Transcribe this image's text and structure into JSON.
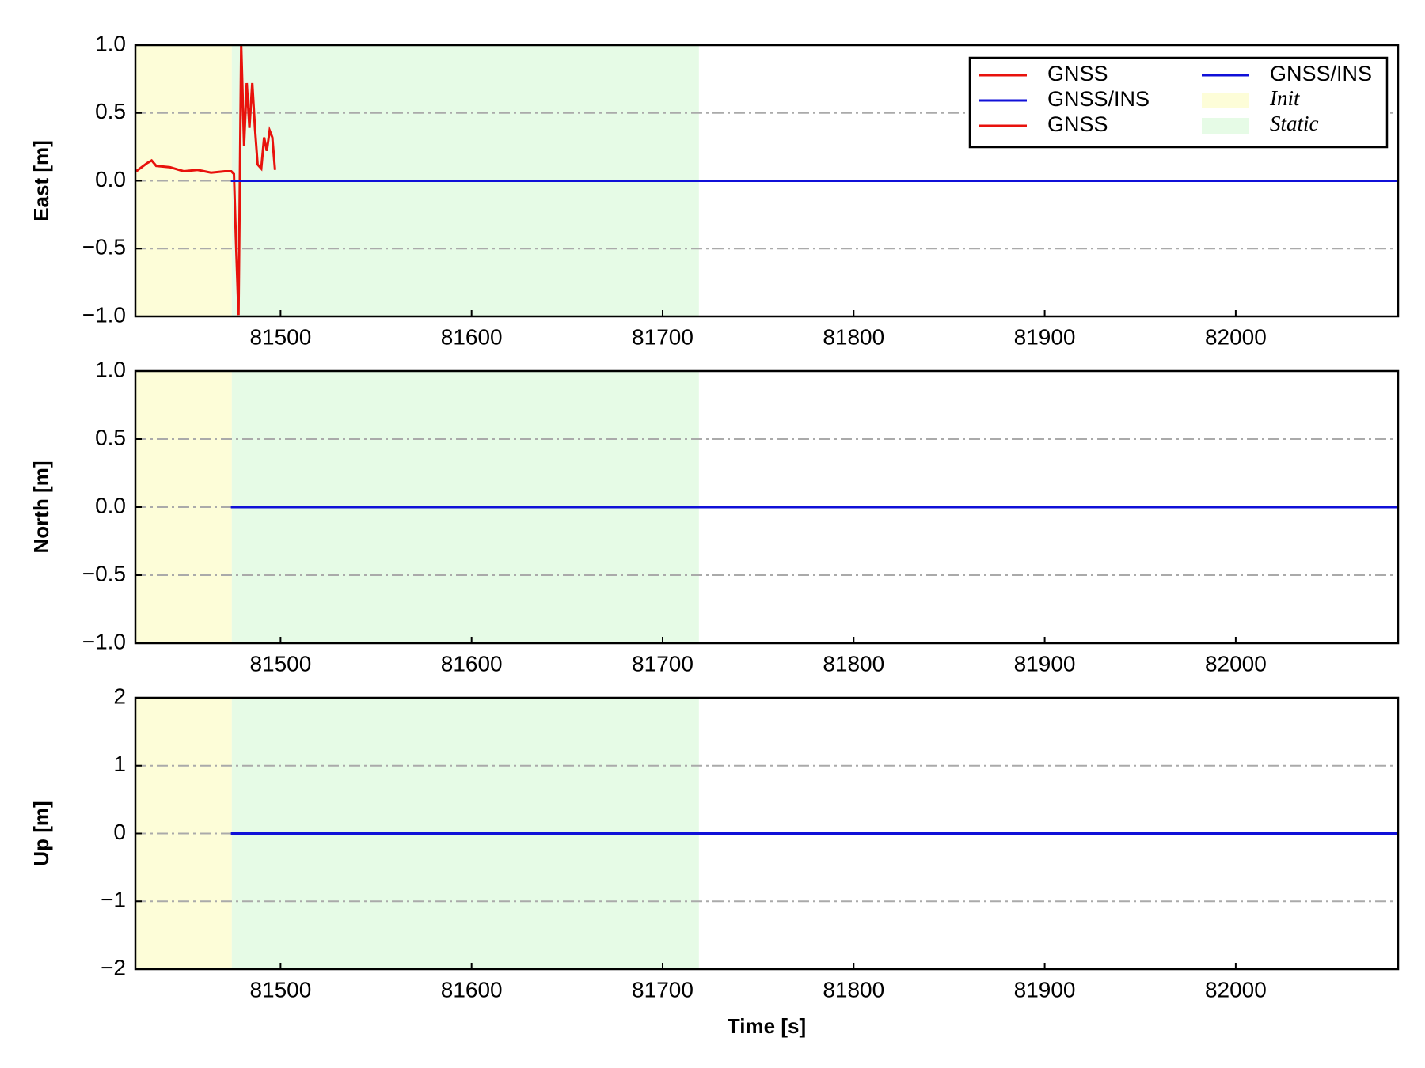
{
  "chart_data": [
    {
      "type": "line",
      "ylabel": "East [m]",
      "xlim": [
        81424,
        82085
      ],
      "xticks": [
        81500,
        81600,
        81700,
        81800,
        81900,
        82000
      ],
      "ylim": [
        -1,
        1
      ],
      "yticks": [
        {
          "value": -1,
          "label": "−1.0"
        },
        {
          "value": -0.5,
          "label": "−0.5"
        },
        {
          "value": 0,
          "label": "0.0"
        },
        {
          "value": 0.5,
          "label": "0.5"
        },
        {
          "value": 1,
          "label": "1.0"
        }
      ],
      "grid": true,
      "spans": [
        {
          "start": 81424,
          "end": 81474.5,
          "color": "#fdfdd8"
        },
        {
          "start": 81474.5,
          "end": 81719,
          "color": "#e6fbe6"
        }
      ],
      "series": [
        {
          "color": "#e8120c",
          "x": [
            81424.4,
            81430.1,
            81432.5,
            81434.9,
            81442.1,
            81449.3,
            81456.5,
            81463.6,
            81470.8,
            81474.2,
            81475.6,
            81476.6,
            81478.0,
            81479.4,
            81480.9,
            81482.3,
            81483.7,
            81485.2,
            81486.6,
            81488.0,
            81489.9,
            81491.4,
            81492.8,
            81494.3,
            81495.7,
            81497.1
          ],
          "values": [
            0.07,
            0.13,
            0.15,
            0.11,
            0.1,
            0.07,
            0.08,
            0.06,
            0.07,
            0.07,
            0.05,
            -0.42,
            -0.99,
            1.0,
            0.26,
            0.72,
            0.39,
            0.72,
            0.39,
            0.12,
            0.09,
            0.32,
            0.22,
            0.37,
            0.32,
            0.08
          ]
        },
        {
          "color": "#1010d8",
          "x": [
            81474,
            82085
          ],
          "values": [
            0,
            0
          ]
        }
      ],
      "legend": {
        "position": "upper right",
        "columns": 2,
        "items": [
          {
            "label": "GNSS",
            "color": "#e8120c",
            "kind": "line"
          },
          {
            "label": "GNSS/INS",
            "color": "#1010d8",
            "kind": "line"
          },
          {
            "label": "GNSS",
            "color": "#e8120c",
            "kind": "line"
          },
          {
            "label": "GNSS/INS",
            "color": "#1010d8",
            "kind": "line"
          },
          {
            "label": "Init",
            "color": "#fdfdd8",
            "kind": "patch"
          },
          {
            "label": "Static",
            "color": "#e6fbe6",
            "kind": "patch"
          }
        ]
      }
    },
    {
      "type": "line",
      "ylabel": "North [m]",
      "xlim": [
        81424,
        82085
      ],
      "xticks": [
        81500,
        81600,
        81700,
        81800,
        81900,
        82000
      ],
      "ylim": [
        -1,
        1
      ],
      "yticks": [
        {
          "value": -1,
          "label": "−1.0"
        },
        {
          "value": -0.5,
          "label": "−0.5"
        },
        {
          "value": 0,
          "label": "0.0"
        },
        {
          "value": 0.5,
          "label": "0.5"
        },
        {
          "value": 1,
          "label": "1.0"
        }
      ],
      "grid": true,
      "spans": [
        {
          "start": 81424,
          "end": 81474.5,
          "color": "#fdfdd8"
        },
        {
          "start": 81474.5,
          "end": 81719,
          "color": "#e6fbe6"
        }
      ],
      "series": [
        {
          "color": "#1010d8",
          "x": [
            81474,
            82085
          ],
          "values": [
            0,
            0
          ]
        }
      ]
    },
    {
      "type": "line",
      "ylabel": "Up [m]",
      "xlabel": "Time [s]",
      "xlim": [
        81424,
        82085
      ],
      "xticks": [
        81500,
        81600,
        81700,
        81800,
        81900,
        82000
      ],
      "ylim": [
        -2,
        2
      ],
      "yticks": [
        {
          "value": -2,
          "label": "−2"
        },
        {
          "value": -1,
          "label": "−1"
        },
        0,
        1,
        2
      ],
      "grid": true,
      "spans": [
        {
          "start": 81424,
          "end": 81474.5,
          "color": "#fdfdd8"
        },
        {
          "start": 81474.5,
          "end": 81719,
          "color": "#e6fbe6"
        }
      ],
      "series": [
        {
          "color": "#1010d8",
          "x": [
            81474,
            82085
          ],
          "values": [
            0,
            0
          ]
        }
      ]
    }
  ]
}
